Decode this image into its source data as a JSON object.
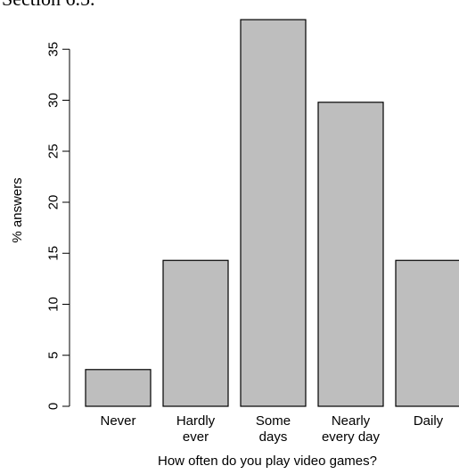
{
  "page": {
    "heading_fragment": "Section 6.5."
  },
  "chart_data": {
    "type": "bar",
    "categories": [
      [
        "Never"
      ],
      [
        "Hardly",
        "ever"
      ],
      [
        "Some",
        "days"
      ],
      [
        "Nearly",
        "every day"
      ],
      [
        "Daily"
      ]
    ],
    "values": [
      3.6,
      14.3,
      37.9,
      29.8,
      14.3
    ],
    "xlabel": "How often do you play video games?",
    "ylabel": "% answers",
    "ylim": [
      0,
      38
    ],
    "yticks": [
      0,
      5,
      10,
      15,
      20,
      25,
      30,
      35
    ],
    "bar_color": "#bebebe",
    "bar_border": "#000000",
    "grid": false,
    "legend": "none"
  }
}
